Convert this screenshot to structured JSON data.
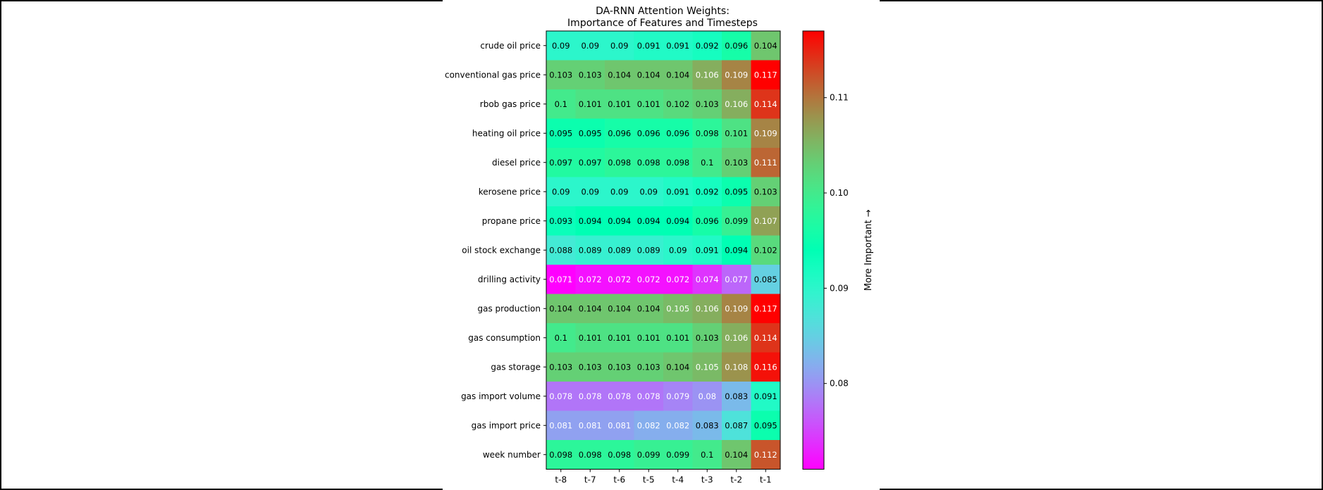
{
  "chart_data": {
    "type": "heatmap",
    "title_line1": "DA-RNN Attention Weights:",
    "title_line2": "Importance of Features and Timesteps",
    "x_labels": [
      "t-8",
      "t-7",
      "t-6",
      "t-5",
      "t-4",
      "t-3",
      "t-2",
      "t-1"
    ],
    "y_labels": [
      "crude oil price",
      "conventional gas price",
      "rbob gas price",
      "heating oil price",
      "diesel price",
      "kerosene price",
      "propane price",
      "oil stock exchange",
      "drilling activity",
      "gas production",
      "gas consumption",
      "gas storage",
      "gas import volume",
      "gas import price",
      "week number"
    ],
    "values": [
      [
        0.09,
        0.09,
        0.09,
        0.091,
        0.091,
        0.092,
        0.096,
        0.104
      ],
      [
        0.103,
        0.103,
        0.104,
        0.104,
        0.104,
        0.106,
        0.109,
        0.117
      ],
      [
        0.1,
        0.101,
        0.101,
        0.101,
        0.102,
        0.103,
        0.106,
        0.114
      ],
      [
        0.095,
        0.095,
        0.096,
        0.096,
        0.096,
        0.098,
        0.101,
        0.109
      ],
      [
        0.097,
        0.097,
        0.098,
        0.098,
        0.098,
        0.1,
        0.103,
        0.111
      ],
      [
        0.09,
        0.09,
        0.09,
        0.09,
        0.091,
        0.092,
        0.095,
        0.103
      ],
      [
        0.093,
        0.094,
        0.094,
        0.094,
        0.094,
        0.096,
        0.099,
        0.107
      ],
      [
        0.088,
        0.089,
        0.089,
        0.089,
        0.09,
        0.091,
        0.094,
        0.102
      ],
      [
        0.071,
        0.072,
        0.072,
        0.072,
        0.072,
        0.074,
        0.077,
        0.085
      ],
      [
        0.104,
        0.104,
        0.104,
        0.104,
        0.105,
        0.106,
        0.109,
        0.117
      ],
      [
        0.1,
        0.101,
        0.101,
        0.101,
        0.101,
        0.103,
        0.106,
        0.114
      ],
      [
        0.103,
        0.103,
        0.103,
        0.103,
        0.104,
        0.105,
        0.108,
        0.116
      ],
      [
        0.078,
        0.078,
        0.078,
        0.078,
        0.079,
        0.08,
        0.083,
        0.091
      ],
      [
        0.081,
        0.081,
        0.081,
        0.082,
        0.082,
        0.083,
        0.087,
        0.095
      ],
      [
        0.098,
        0.098,
        0.098,
        0.099,
        0.099,
        0.1,
        0.104,
        0.112
      ]
    ],
    "colormap": "rainbow",
    "vmin": 0.071,
    "vmax": 0.117,
    "colorbar_ticks": [
      "0.08",
      "0.09",
      "0.10",
      "0.11"
    ],
    "colorbar_label": "More Important →"
  }
}
